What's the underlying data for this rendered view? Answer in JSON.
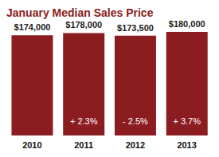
{
  "chart_data": {
    "type": "bar",
    "title": "January Median Sales Price",
    "categories": [
      "2010",
      "2011",
      "2012",
      "2013"
    ],
    "values": [
      174000,
      178000,
      173500,
      180000
    ],
    "value_labels": [
      "$174,000",
      "$178,000",
      "$173,500",
      "$180,000"
    ],
    "changes": [
      null,
      2.3,
      -2.5,
      3.7
    ],
    "change_labels": [
      null,
      "+ 2.3%",
      "- 2.5%",
      "+ 3.7%"
    ],
    "color": "#8b1c20",
    "ylim": [
      0,
      180000
    ],
    "data_labels": true,
    "tick_labels": "x",
    "grid": false
  }
}
